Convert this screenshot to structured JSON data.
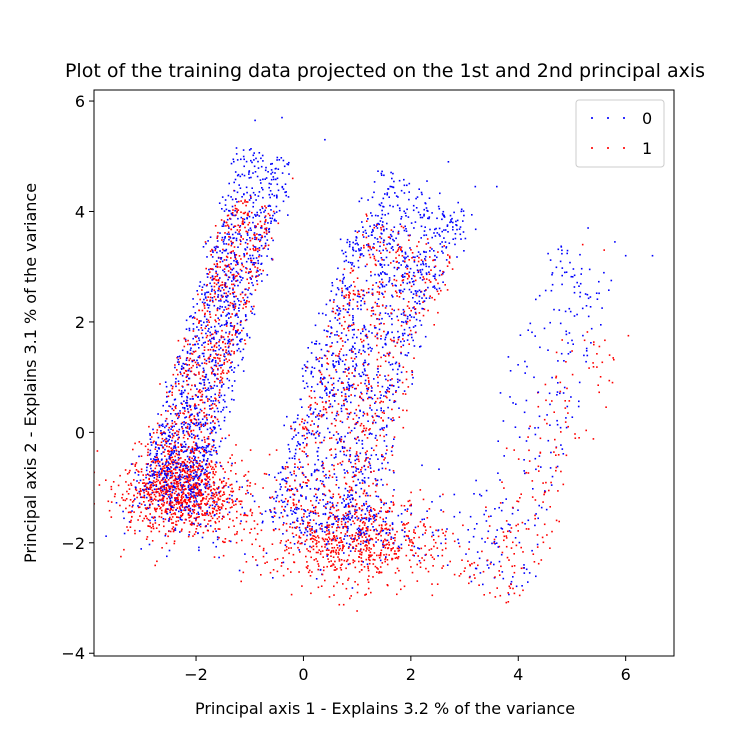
{
  "chart_data": {
    "type": "scatter",
    "title": "Plot of the training data projected on the 1st and 2nd principal axis",
    "xlabel": "Principal axis 1 - Explains 3.2 % of the variance",
    "ylabel": "Principal axis 2 - Explains 3.1 % of the variance",
    "xlim": [
      -3.9,
      6.9
    ],
    "ylim": [
      -4.05,
      6.2
    ],
    "xticks": [
      -2,
      0,
      2,
      4,
      6
    ],
    "xtick_labels": [
      "−2",
      "0",
      "2",
      "4",
      "6"
    ],
    "yticks": [
      -4,
      -2,
      0,
      2,
      4,
      6
    ],
    "ytick_labels": [
      "−4",
      "−2",
      "0",
      "2",
      "4",
      "6"
    ],
    "grid": false,
    "legend_position": "top-right",
    "series": [
      {
        "name": "0",
        "color": "#0000ff",
        "clusters": [
          {
            "kind": "band",
            "count": 1200,
            "spine": [
              [
                -2.5,
                -1.2
              ],
              [
                -2.0,
                0.5
              ],
              [
                -1.4,
                2.6
              ],
              [
                -0.7,
                5.0
              ]
            ],
            "half_width": 0.55
          },
          {
            "kind": "blob",
            "count": 260,
            "center": [
              -2.2,
              -1.1
            ],
            "spread": [
              0.55,
              0.45
            ]
          },
          {
            "kind": "band",
            "count": 1300,
            "spine": [
              [
                0.3,
                -1.8
              ],
              [
                0.8,
                0.5
              ],
              [
                1.5,
                2.7
              ],
              [
                2.3,
                4.3
              ]
            ],
            "half_width": 0.95
          },
          {
            "kind": "blob",
            "count": 220,
            "center": [
              1.0,
              -1.7
            ],
            "spread": [
              0.9,
              0.4
            ]
          },
          {
            "kind": "band",
            "count": 240,
            "spine": [
              [
                3.5,
                -2.8
              ],
              [
                4.0,
                -1.0
              ],
              [
                4.6,
                1.5
              ],
              [
                5.3,
                3.2
              ]
            ],
            "half_width": 0.65
          },
          {
            "kind": "outliers",
            "points": [
              [
                2.7,
                4.9
              ],
              [
                2.3,
                4.55
              ],
              [
                3.2,
                4.45
              ],
              [
                3.6,
                4.45
              ],
              [
                5.3,
                3.7
              ],
              [
                6.0,
                3.2
              ],
              [
                5.8,
                3.45
              ],
              [
                6.5,
                3.2
              ],
              [
                4.9,
                2.9
              ],
              [
                0.4,
                5.3
              ],
              [
                -0.9,
                5.65
              ],
              [
                -0.4,
                5.7
              ]
            ]
          }
        ]
      },
      {
        "name": "1",
        "color": "#ff0000",
        "clusters": [
          {
            "kind": "band",
            "count": 800,
            "spine": [
              [
                -2.6,
                -1.3
              ],
              [
                -2.1,
                0.4
              ],
              [
                -1.5,
                2.3
              ],
              [
                -0.9,
                4.2
              ]
            ],
            "half_width": 0.5
          },
          {
            "kind": "blob",
            "count": 900,
            "center": [
              -2.2,
              -1.1
            ],
            "spread": [
              0.6,
              0.4
            ]
          },
          {
            "kind": "band",
            "count": 700,
            "spine": [
              [
                0.3,
                -1.6
              ],
              [
                0.8,
                0.2
              ],
              [
                1.4,
                2.0
              ],
              [
                2.0,
                3.6
              ]
            ],
            "half_width": 0.9
          },
          {
            "kind": "blob",
            "count": 700,
            "center": [
              1.0,
              -2.0
            ],
            "spread": [
              0.85,
              0.4
            ]
          },
          {
            "kind": "band",
            "count": 180,
            "spine": [
              [
                3.4,
                -3.0
              ],
              [
                4.0,
                -2.0
              ],
              [
                4.5,
                -0.5
              ],
              [
                5.5,
                1.8
              ]
            ],
            "half_width": 0.6
          },
          {
            "kind": "outliers",
            "points": [
              [
                -3.4,
                -2.25
              ],
              [
                -0.2,
                4.6
              ],
              [
                5.2,
                3.4
              ],
              [
                6.05,
                1.75
              ],
              [
                5.7,
                1.4
              ],
              [
                5.6,
                3.3
              ],
              [
                2.5,
                -2.75
              ],
              [
                2.4,
                -2.95
              ]
            ]
          }
        ]
      }
    ]
  }
}
